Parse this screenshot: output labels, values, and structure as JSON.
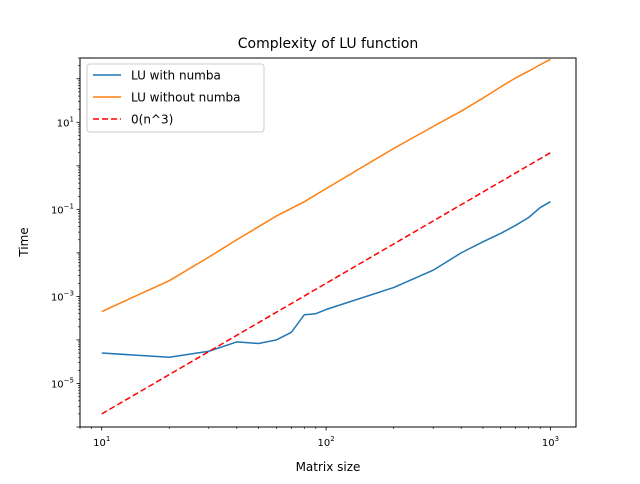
{
  "chart_data": {
    "type": "line",
    "title": "Complexity of LU function",
    "xlabel": "Matrix size",
    "ylabel": "Time",
    "xscale": "log",
    "yscale": "log",
    "xlim": [
      8,
      1300
    ],
    "ylim": [
      1e-06,
      300
    ],
    "grid": false,
    "legend_position": "top-left",
    "x_ticks": [
      {
        "value": 10,
        "base": "10",
        "exp": "1"
      },
      {
        "value": 100,
        "base": "10",
        "exp": "2"
      },
      {
        "value": 1000,
        "base": "10",
        "exp": "3"
      }
    ],
    "y_ticks": [
      {
        "value": 1e-05,
        "base": "10",
        "exp": "−5"
      },
      {
        "value": 0.001,
        "base": "10",
        "exp": "−3"
      },
      {
        "value": 0.1,
        "base": "10",
        "exp": "−1"
      },
      {
        "value": 10,
        "base": "10",
        "exp": "1"
      }
    ],
    "series": [
      {
        "name": "LU with numba",
        "color": "#1f77b4",
        "dash": "solid",
        "points": [
          [
            10,
            5e-05
          ],
          [
            20,
            4e-05
          ],
          [
            30,
            5.5e-05
          ],
          [
            40,
            9e-05
          ],
          [
            50,
            8.3e-05
          ],
          [
            60,
            0.0001
          ],
          [
            70,
            0.00015
          ],
          [
            80,
            0.00038
          ],
          [
            90,
            0.0004
          ],
          [
            100,
            0.0005
          ],
          [
            200,
            0.0016
          ],
          [
            300,
            0.004
          ],
          [
            400,
            0.01
          ],
          [
            500,
            0.018
          ],
          [
            600,
            0.028
          ],
          [
            700,
            0.043
          ],
          [
            800,
            0.065
          ],
          [
            900,
            0.11
          ],
          [
            1000,
            0.15
          ]
        ]
      },
      {
        "name": "LU without numba",
        "color": "#ff7f0e",
        "dash": "solid",
        "points": [
          [
            10,
            0.00045
          ],
          [
            20,
            0.0023
          ],
          [
            30,
            0.008
          ],
          [
            40,
            0.02
          ],
          [
            50,
            0.04
          ],
          [
            60,
            0.07
          ],
          [
            80,
            0.15
          ],
          [
            100,
            0.3
          ],
          [
            200,
            2.5
          ],
          [
            300,
            8
          ],
          [
            400,
            18
          ],
          [
            500,
            36
          ],
          [
            600,
            65
          ],
          [
            700,
            105
          ],
          [
            800,
            150
          ],
          [
            900,
            210
          ],
          [
            1000,
            280
          ]
        ]
      },
      {
        "name": "0(n^3)",
        "color": "#ff0000",
        "dash": "dashed",
        "points": [
          [
            10,
            2e-06
          ],
          [
            1000,
            2
          ]
        ]
      }
    ]
  }
}
